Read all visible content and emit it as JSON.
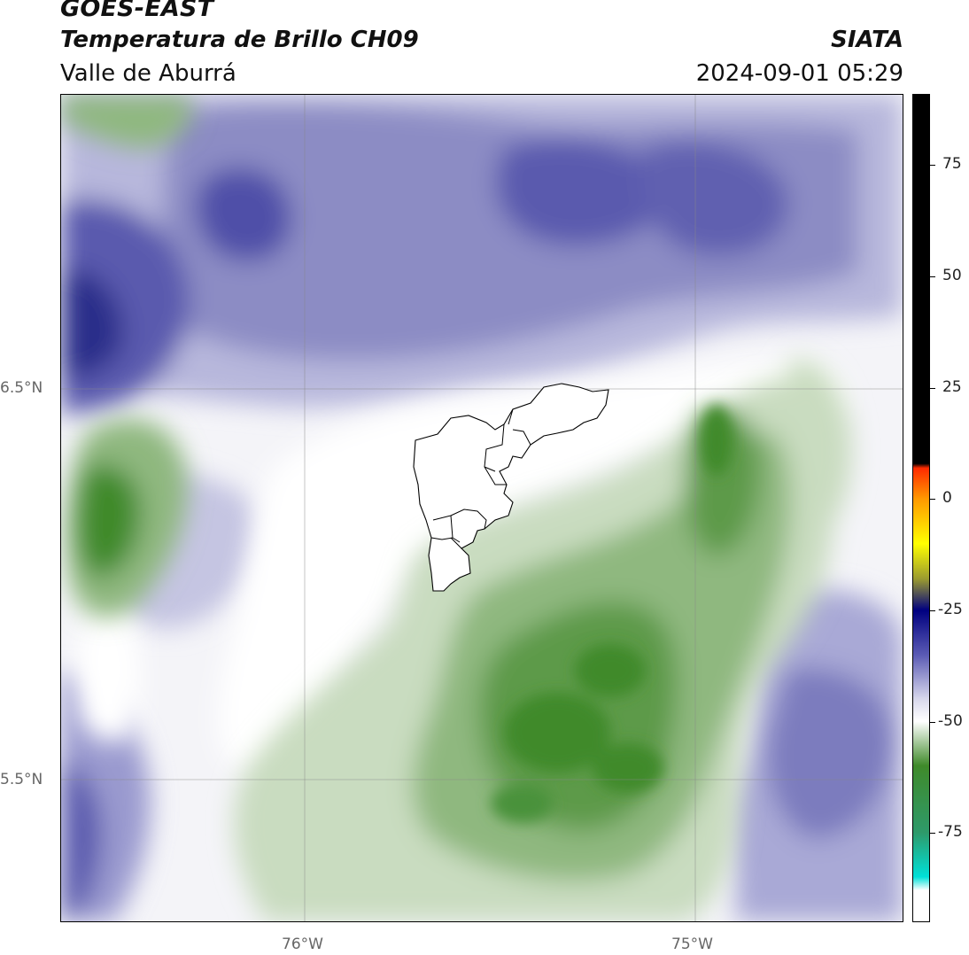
{
  "header": {
    "satellite": "GOES-EAST",
    "product": "Temperatura de Brillo CH09",
    "region": "Valle de Aburrá",
    "institution": "SIATA",
    "datetime": "2024-09-01 05:29"
  },
  "map": {
    "lat_labels": [
      "6.5°N",
      "5.5°N"
    ],
    "lon_labels": [
      "76°W",
      "75°W"
    ],
    "colors": {
      "green_dark": "#3f8a2a",
      "green_mid": "#8fb87f",
      "green_light": "#d9e6d2",
      "white": "#f6f6f8",
      "lavender": "#cfcfe6",
      "purple_mid": "#8c8cc4",
      "purple_dark": "#4a4aa0",
      "navy": "#2b2f8a"
    }
  },
  "colorbar": {
    "labels": [
      "75",
      "50",
      "25",
      "0",
      "-25",
      "-50",
      "-75"
    ],
    "stops": [
      {
        "value": 85,
        "color": "#000000"
      },
      {
        "value": 8,
        "color": "#000000"
      },
      {
        "value": 7,
        "color": "#ff2a00"
      },
      {
        "value": 0,
        "color": "#ff9a00"
      },
      {
        "value": -10,
        "color": "#ffff00"
      },
      {
        "value": -18,
        "color": "#9a9a30"
      },
      {
        "value": -25,
        "color": "#000080"
      },
      {
        "value": -35,
        "color": "#5a5ab4"
      },
      {
        "value": -45,
        "color": "#d8d8ec"
      },
      {
        "value": -50,
        "color": "#ffffff"
      },
      {
        "value": -60,
        "color": "#3f8a2a"
      },
      {
        "value": -75,
        "color": "#2e9a6a"
      },
      {
        "value": -85,
        "color": "#00e0d8"
      },
      {
        "value": -88,
        "color": "#ffffff"
      }
    ]
  }
}
